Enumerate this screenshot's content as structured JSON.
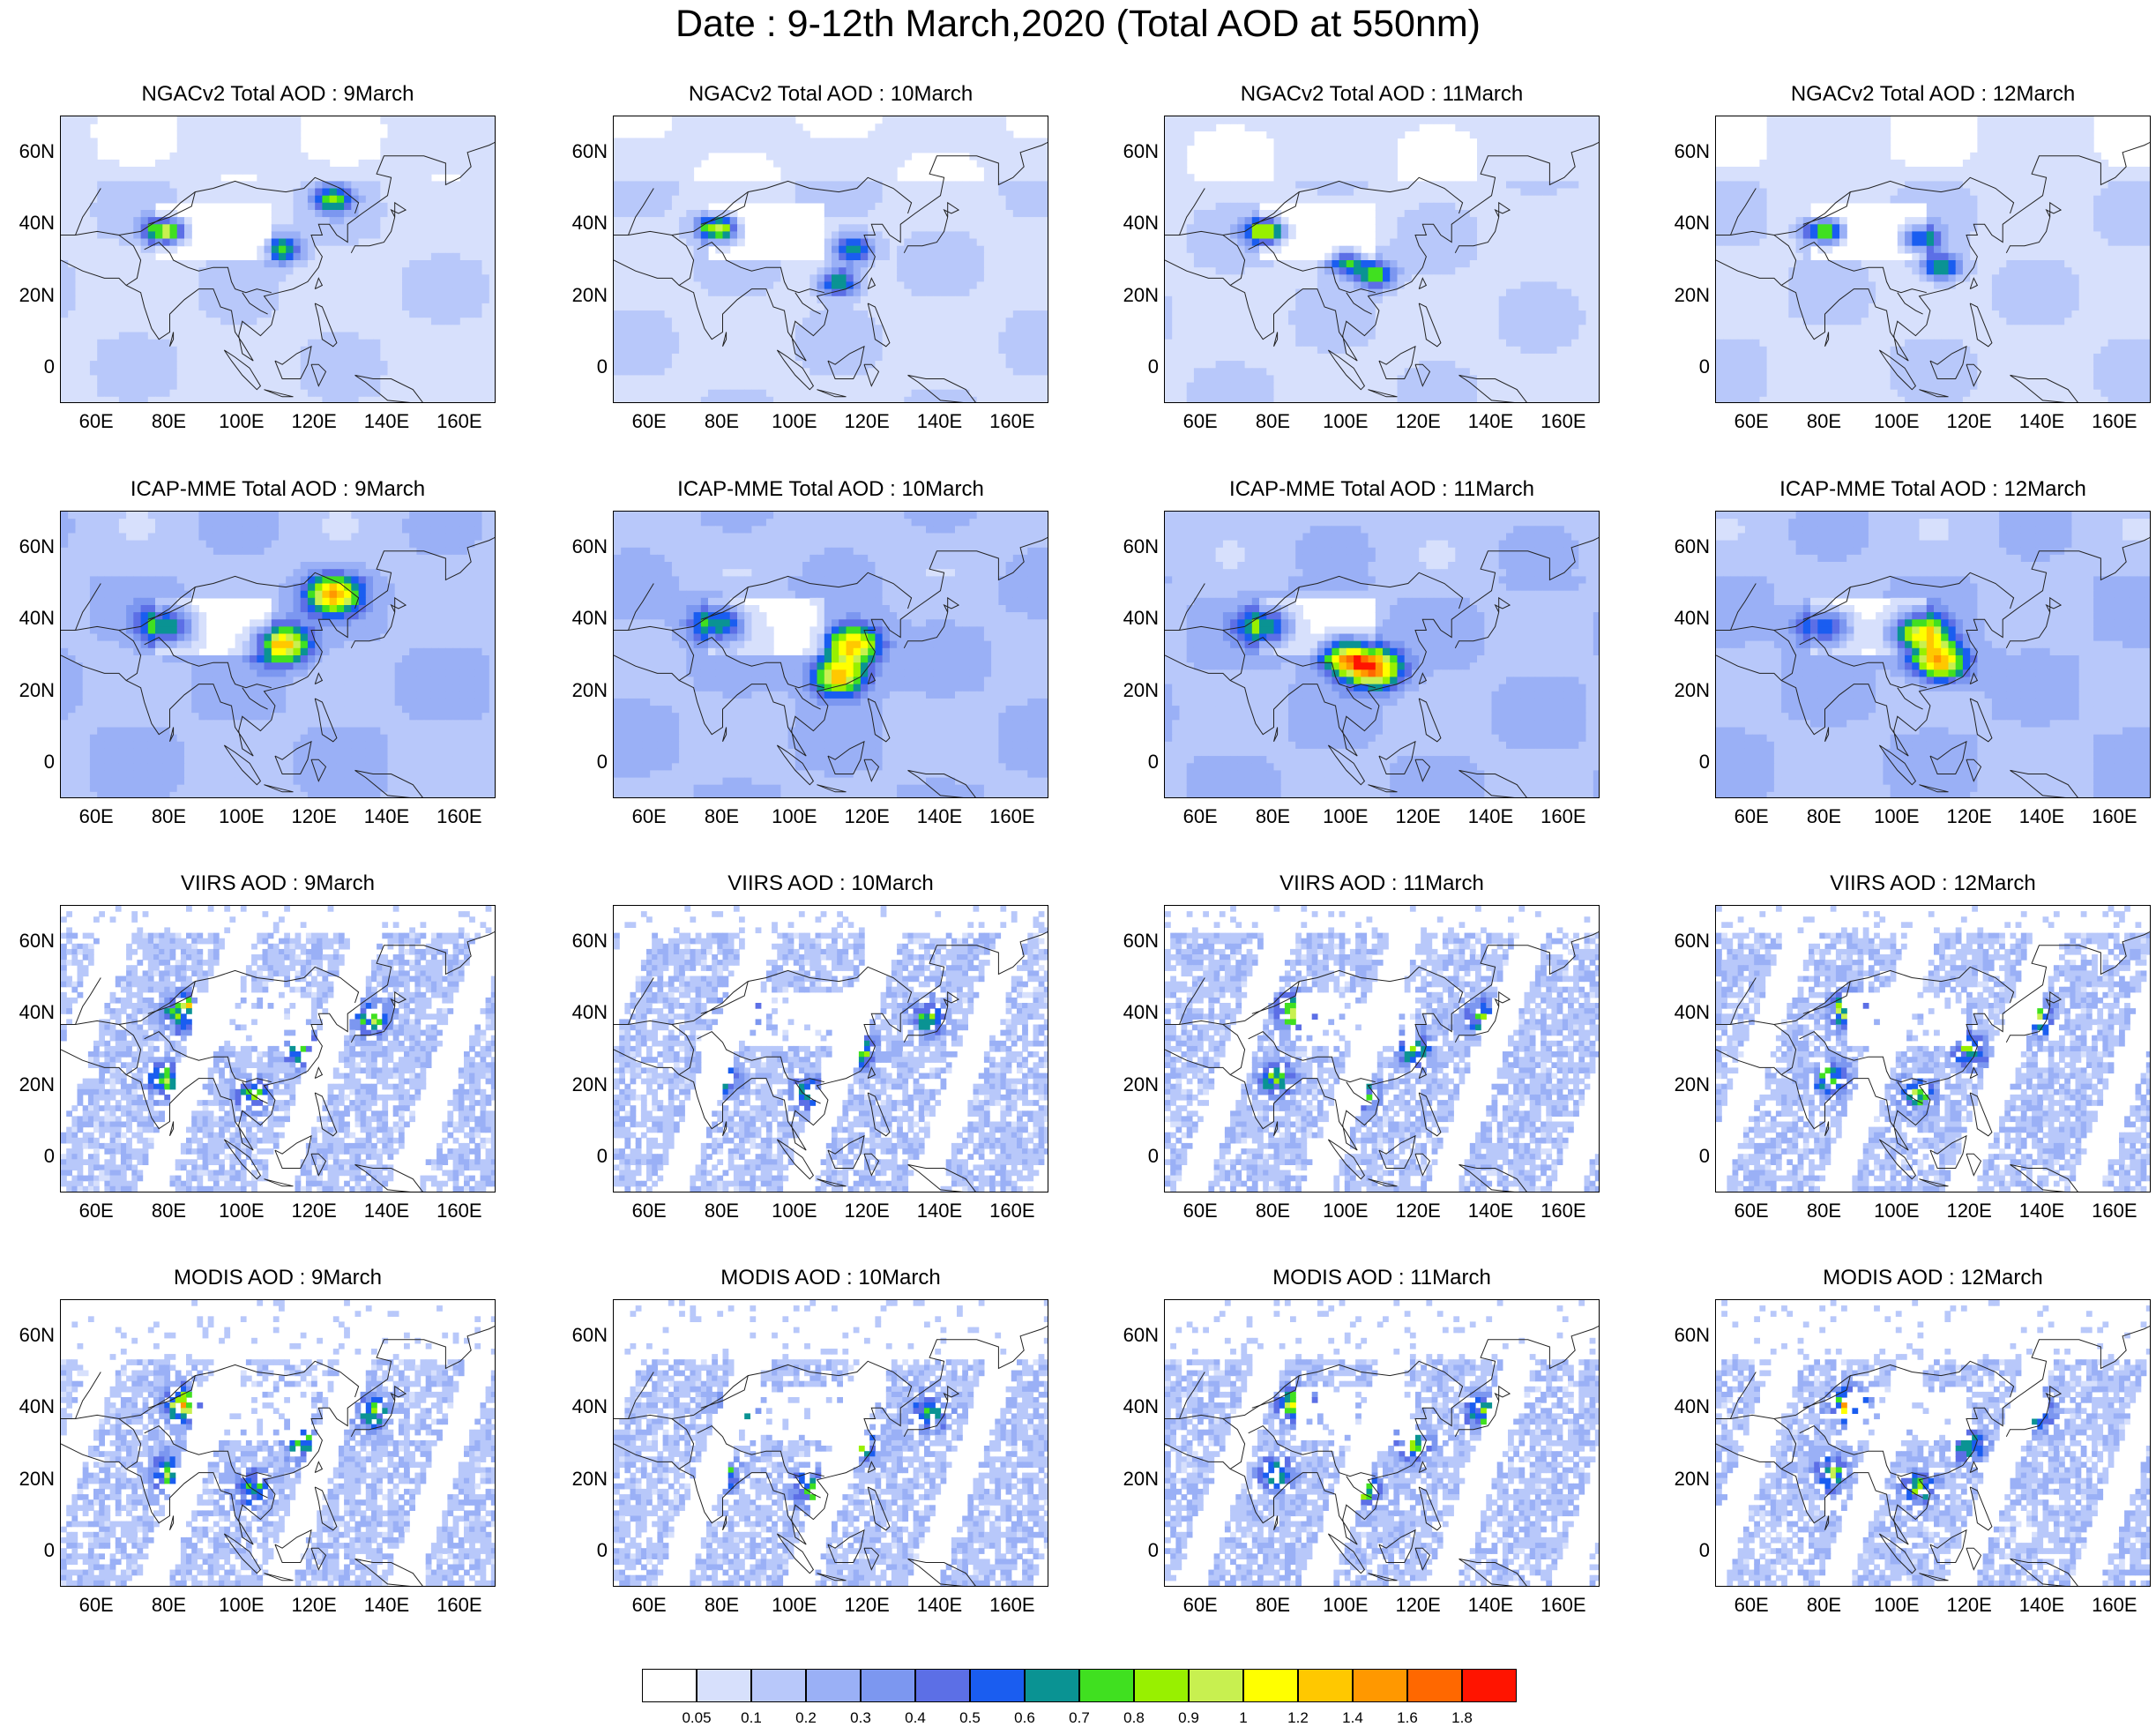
{
  "title": "Date : 9-12th March,2020 (Total AOD at 550nm)",
  "rows": [
    {
      "source": "NGACv2 Total AOD",
      "kind": "model",
      "panels": [
        {
          "title": "NGACv2 Total AOD : 9March"
        },
        {
          "title": "NGACv2 Total AOD : 10March"
        },
        {
          "title": "NGACv2 Total AOD : 11March"
        },
        {
          "title": "NGACv2 Total AOD : 12March"
        }
      ]
    },
    {
      "source": "ICAP-MME Total AOD",
      "kind": "model",
      "panels": [
        {
          "title": "ICAP-MME Total AOD : 9March"
        },
        {
          "title": "ICAP-MME Total AOD : 10March"
        },
        {
          "title": "ICAP-MME Total AOD : 11March"
        },
        {
          "title": "ICAP-MME Total AOD : 12March"
        }
      ]
    },
    {
      "source": "VIIRS AOD",
      "kind": "satellite",
      "panels": [
        {
          "title": "VIIRS AOD : 9March"
        },
        {
          "title": "VIIRS AOD : 10March"
        },
        {
          "title": "VIIRS AOD : 11March"
        },
        {
          "title": "VIIRS AOD : 12March"
        }
      ]
    },
    {
      "source": "MODIS AOD",
      "kind": "satellite",
      "panels": [
        {
          "title": "MODIS AOD : 9March"
        },
        {
          "title": "MODIS AOD : 10March"
        },
        {
          "title": "MODIS AOD : 11March"
        },
        {
          "title": "MODIS AOD : 12March"
        }
      ]
    }
  ],
  "map_extent": {
    "lon_min": 50,
    "lon_max": 170,
    "lat_min": -10,
    "lat_max": 70
  },
  "lat_ticks": [
    {
      "value": 60,
      "label": "60N"
    },
    {
      "value": 40,
      "label": "40N"
    },
    {
      "value": 20,
      "label": "20N"
    },
    {
      "value": 0,
      "label": "0"
    }
  ],
  "lon_ticks": [
    {
      "value": 60,
      "label": "60E"
    },
    {
      "value": 80,
      "label": "80E"
    },
    {
      "value": 100,
      "label": "100E"
    },
    {
      "value": 120,
      "label": "120E"
    },
    {
      "value": 140,
      "label": "140E"
    },
    {
      "value": 160,
      "label": "160E"
    }
  ],
  "colorbar": {
    "colors": [
      "#ffffff",
      "#d7e0fc",
      "#b8c8fa",
      "#9ab0f6",
      "#7c97f0",
      "#5c6fe6",
      "#1a5df0",
      "#0a9393",
      "#40e020",
      "#98f000",
      "#c8f050",
      "#ffff00",
      "#ffc800",
      "#ff9800",
      "#ff6800",
      "#ff1400"
    ],
    "labels": [
      "0.05",
      "0.1",
      "0.2",
      "0.3",
      "0.4",
      "0.5",
      "0.6",
      "0.7",
      "0.8",
      "0.9",
      "1",
      "1.2",
      "1.4",
      "1.6",
      "1.8"
    ]
  }
}
